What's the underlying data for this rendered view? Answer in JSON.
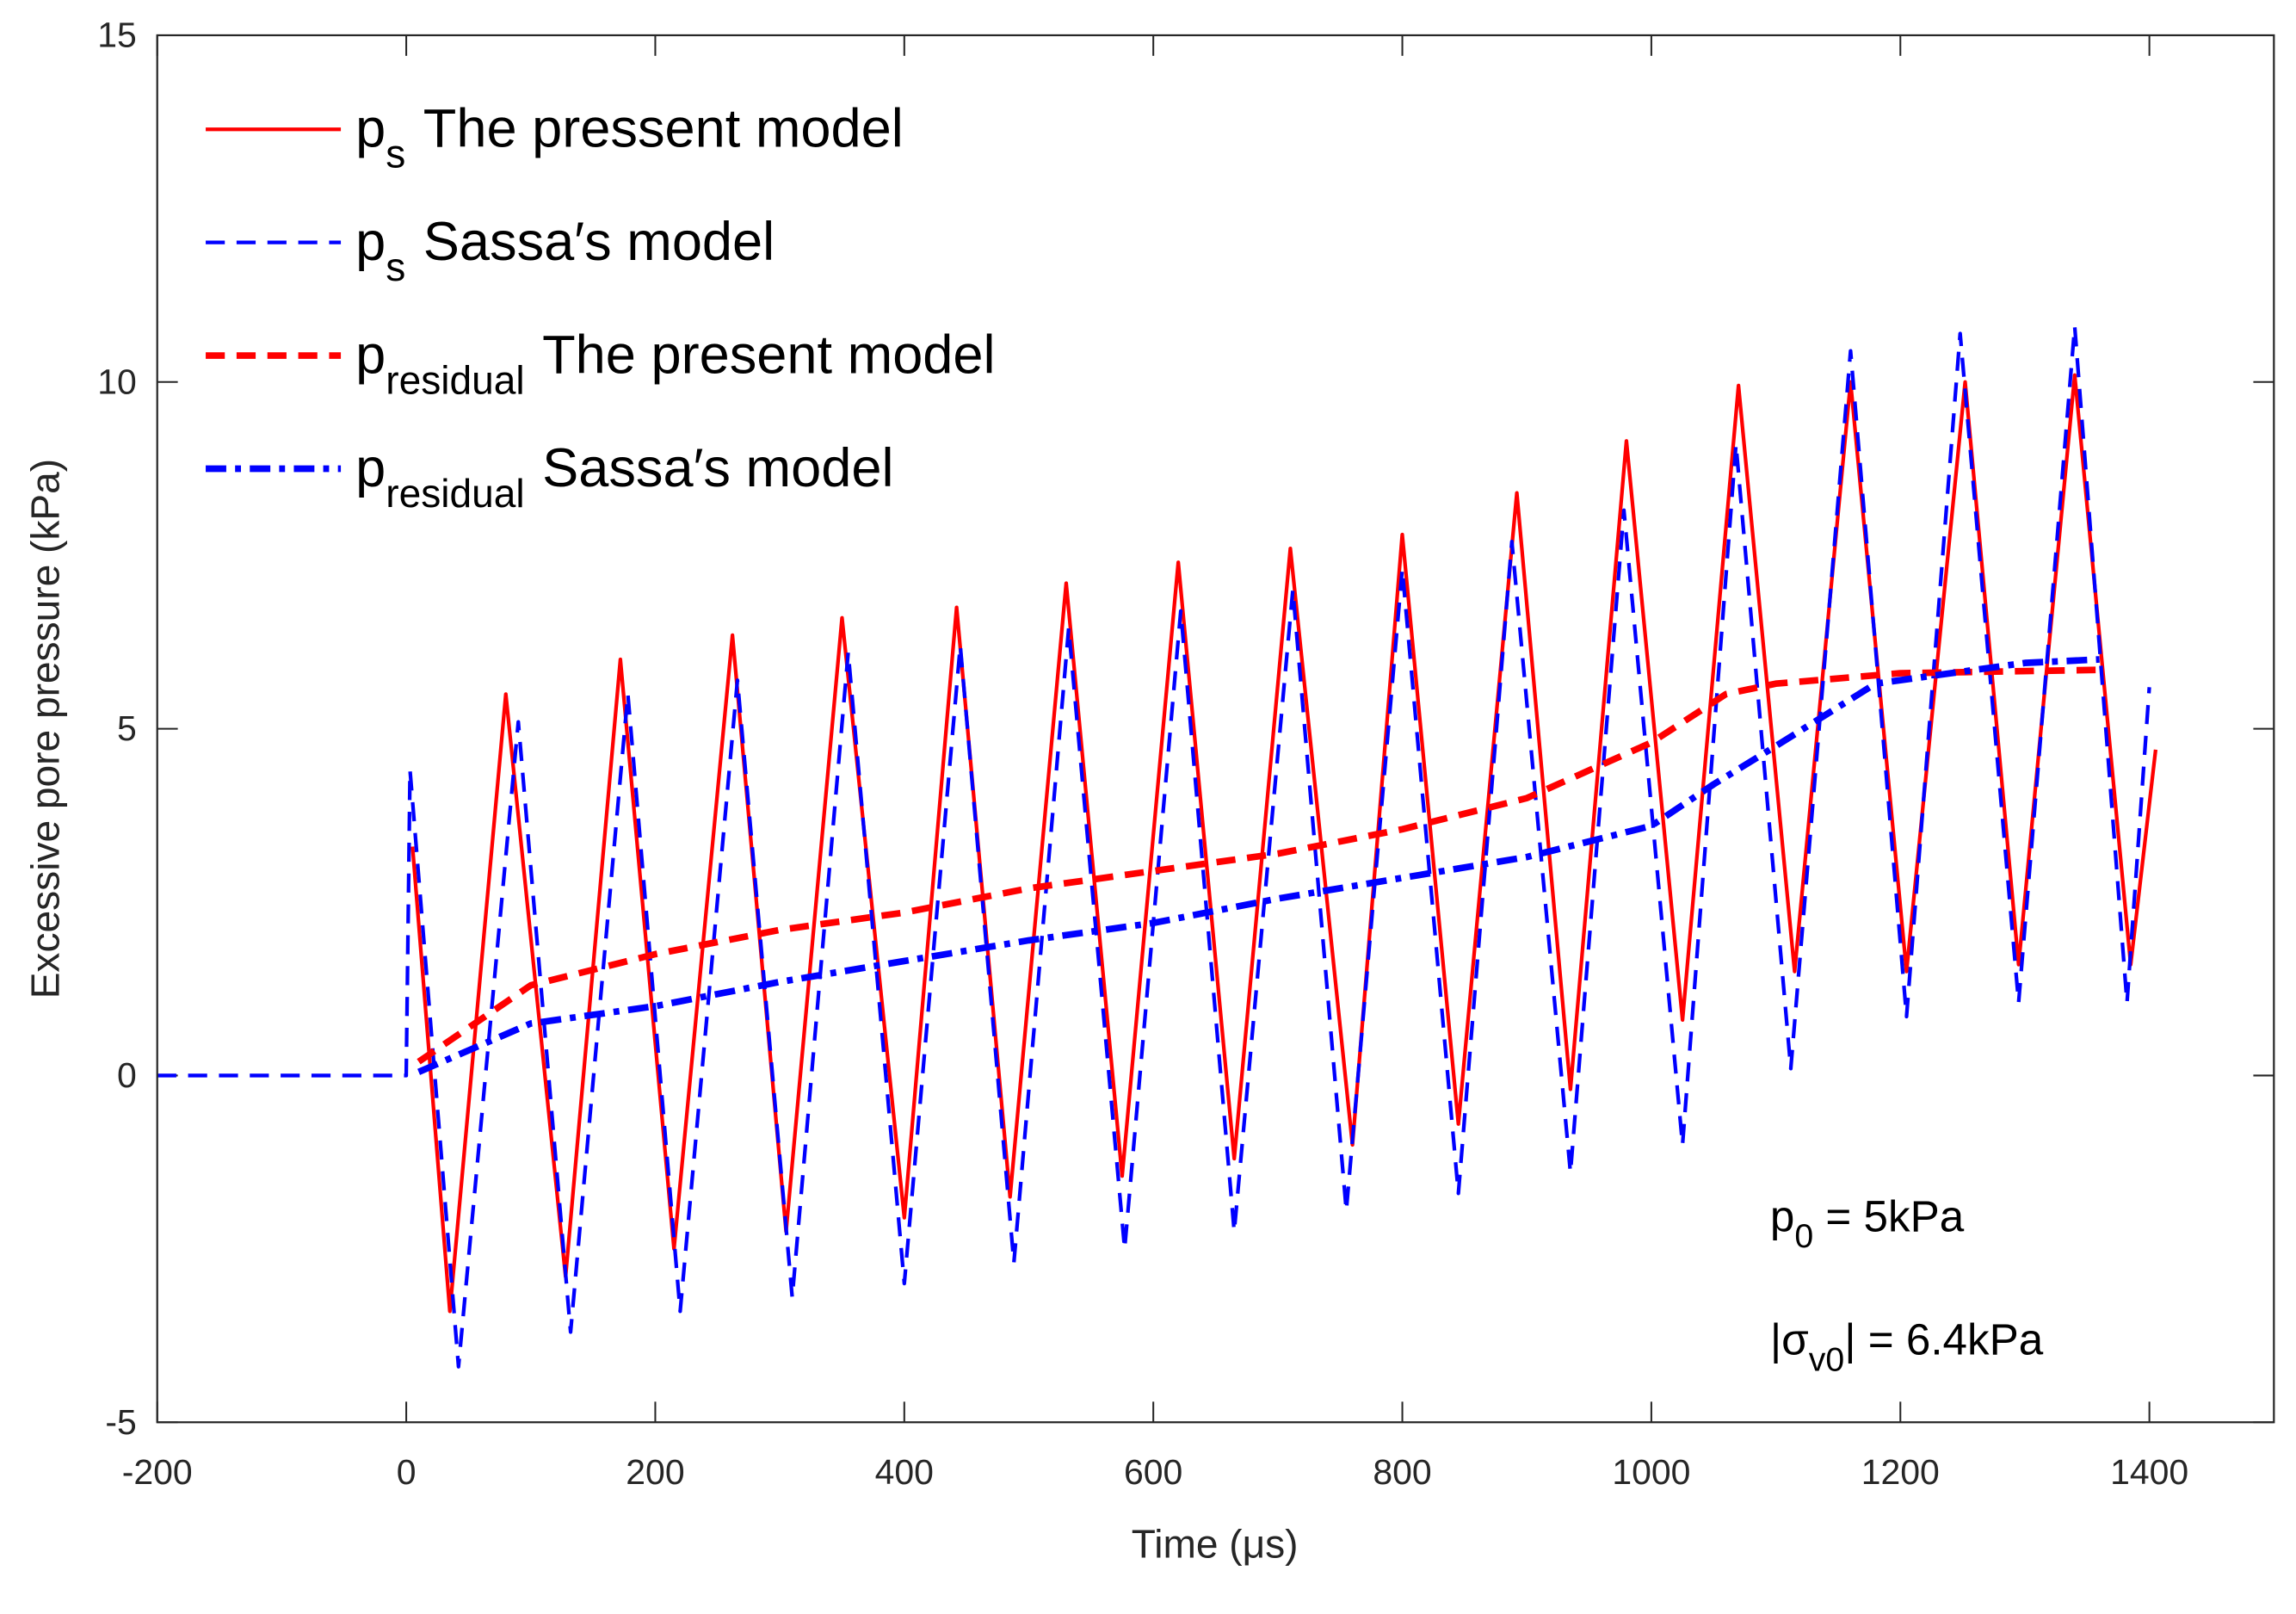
{
  "chart_data": {
    "type": "line",
    "xlabel": "Time (μs)",
    "ylabel": "Excessive pore pressure (kPa)",
    "xlim": [
      -200,
      1500
    ],
    "ylim": [
      -5,
      15
    ],
    "xticks": [
      -200,
      0,
      200,
      400,
      600,
      800,
      1000,
      1200,
      1400
    ],
    "yticks": [
      -5,
      0,
      5,
      10,
      15
    ],
    "legend": "upper left",
    "series": [
      {
        "name_main": "p",
        "name_sub": "s",
        "name": "The pressent model",
        "color": "#ff0000",
        "style": "solid",
        "linewidth": 2.5,
        "x": [
          5,
          35,
          80,
          128,
          172,
          215,
          262,
          305,
          350,
          400,
          442,
          485,
          530,
          575,
          620,
          665,
          710,
          760,
          800,
          845,
          892,
          935,
          980,
          1025,
          1070,
          1115,
          1160,
          1205,
          1252,
          1295,
          1340,
          1385,
          1405
        ],
        "values": [
          3.3,
          -3.4,
          5.5,
          -2.9,
          6.0,
          -2.5,
          6.35,
          -2.25,
          6.6,
          -2.05,
          6.75,
          -1.75,
          7.1,
          -1.45,
          7.4,
          -1.2,
          7.6,
          -1.0,
          7.8,
          -0.7,
          8.4,
          -0.2,
          9.15,
          0.8,
          9.95,
          1.5,
          10.0,
          1.5,
          10.0,
          1.6,
          10.1,
          1.6,
          4.7
        ]
      },
      {
        "name_main": "p",
        "name_sub": "s",
        "name": "Sassa′s model",
        "color": "#0000ff",
        "style": "dashed",
        "linewidth": 2.5,
        "x": [
          -200,
          0,
          3,
          42,
          90,
          132,
          178,
          220,
          266,
          310,
          355,
          400,
          445,
          488,
          532,
          577,
          622,
          665,
          712,
          755,
          800,
          845,
          888,
          935,
          978,
          1025,
          1068,
          1112,
          1160,
          1205,
          1248,
          1295,
          1340,
          1382,
          1400
        ],
        "values": [
          0,
          0,
          4.4,
          -4.2,
          5.1,
          -3.7,
          5.5,
          -3.4,
          5.7,
          -3.2,
          6.1,
          -3.0,
          6.2,
          -2.7,
          6.45,
          -2.5,
          6.7,
          -2.25,
          7.0,
          -1.95,
          7.3,
          -1.7,
          7.7,
          -1.4,
          8.15,
          -1.0,
          9.1,
          0.1,
          10.45,
          0.85,
          10.7,
          1.05,
          10.8,
          1.05,
          5.6
        ]
      },
      {
        "name_main": "p",
        "name_sub": "residual",
        "name": "The present model",
        "color": "#ff0000",
        "style": "dashed",
        "linewidth": 4.5,
        "x": [
          10,
          100,
          200,
          300,
          400,
          500,
          600,
          700,
          800,
          900,
          1000,
          1060,
          1100,
          1200,
          1360
        ],
        "values": [
          0.2,
          1.3,
          1.75,
          2.1,
          2.35,
          2.7,
          2.95,
          3.2,
          3.55,
          4.0,
          4.8,
          5.5,
          5.65,
          5.8,
          5.85
        ]
      },
      {
        "name_main": "p",
        "name_sub": "residual",
        "name": "Sassa′s model",
        "color": "#0000ff",
        "style": "dashdot",
        "linewidth": 4.5,
        "x": [
          10,
          100,
          200,
          300,
          400,
          500,
          600,
          700,
          800,
          900,
          1000,
          1050,
          1100,
          1180,
          1300,
          1360
        ],
        "values": [
          0.05,
          0.75,
          1.0,
          1.35,
          1.65,
          1.95,
          2.2,
          2.55,
          2.85,
          3.15,
          3.6,
          4.2,
          4.75,
          5.65,
          5.95,
          6.0
        ]
      }
    ],
    "annotations": [
      {
        "parts": [
          "p",
          "0",
          " = 5kPa"
        ]
      },
      {
        "parts": [
          "|σ",
          "v0",
          "| = 6.4kPa"
        ]
      }
    ]
  }
}
